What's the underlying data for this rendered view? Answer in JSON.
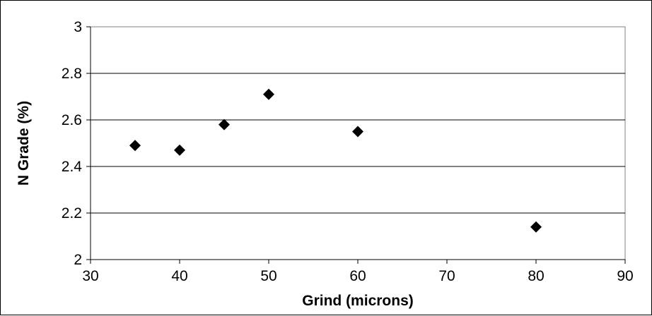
{
  "chart_data": {
    "type": "scatter",
    "title": "",
    "xlabel": "Grind (microns)",
    "ylabel": "N Grade (%)",
    "xlim": [
      30,
      90
    ],
    "ylim": [
      2,
      3
    ],
    "xticks": [
      30,
      40,
      50,
      60,
      70,
      80,
      90
    ],
    "yticks": [
      2,
      2.2,
      2.4,
      2.6,
      2.8,
      3
    ],
    "ytick_labels": [
      "2",
      "2.2",
      "2.4",
      "2.6",
      "2.8",
      "3"
    ],
    "grid": "horizontal",
    "legend": "none",
    "marker": "diamond",
    "marker_color": "#000000",
    "series": [
      {
        "x": [
          35,
          40,
          45,
          50,
          60,
          80
        ],
        "y": [
          2.49,
          2.47,
          2.58,
          2.71,
          2.55,
          2.14
        ]
      }
    ]
  }
}
